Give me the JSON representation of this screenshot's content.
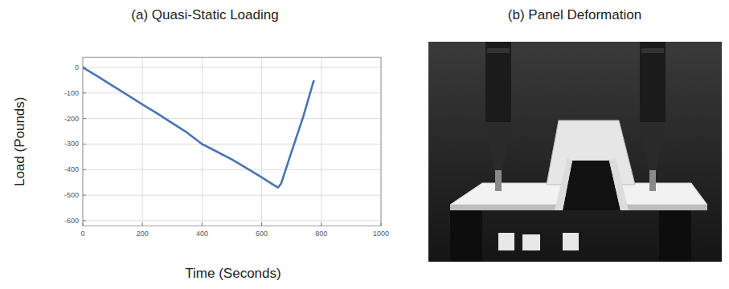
{
  "chart_data": {
    "type": "line",
    "title": "(a) Quasi-Static Loading",
    "x_label": "Time (Seconds)",
    "y_label": "Load (Pounds)",
    "x": [
      0,
      50,
      100,
      150,
      200,
      250,
      300,
      350,
      400,
      450,
      500,
      550,
      600,
      640,
      655,
      665,
      700,
      740,
      775
    ],
    "values": [
      0,
      -35,
      -72,
      -108,
      -145,
      -180,
      -218,
      -255,
      -300,
      -330,
      -360,
      -395,
      -430,
      -460,
      -470,
      -455,
      -330,
      -190,
      -50
    ],
    "color": "#4a74b4",
    "xlim": [
      0,
      1000
    ],
    "xticks": [
      0,
      200,
      400,
      600,
      800,
      1000
    ],
    "ylim": [
      -620,
      40
    ],
    "yticks": [
      0,
      -100,
      -200,
      -300,
      -400,
      -500,
      -600
    ],
    "grid": true
  },
  "panel_b": {
    "title": "(b) Panel Deformation"
  }
}
